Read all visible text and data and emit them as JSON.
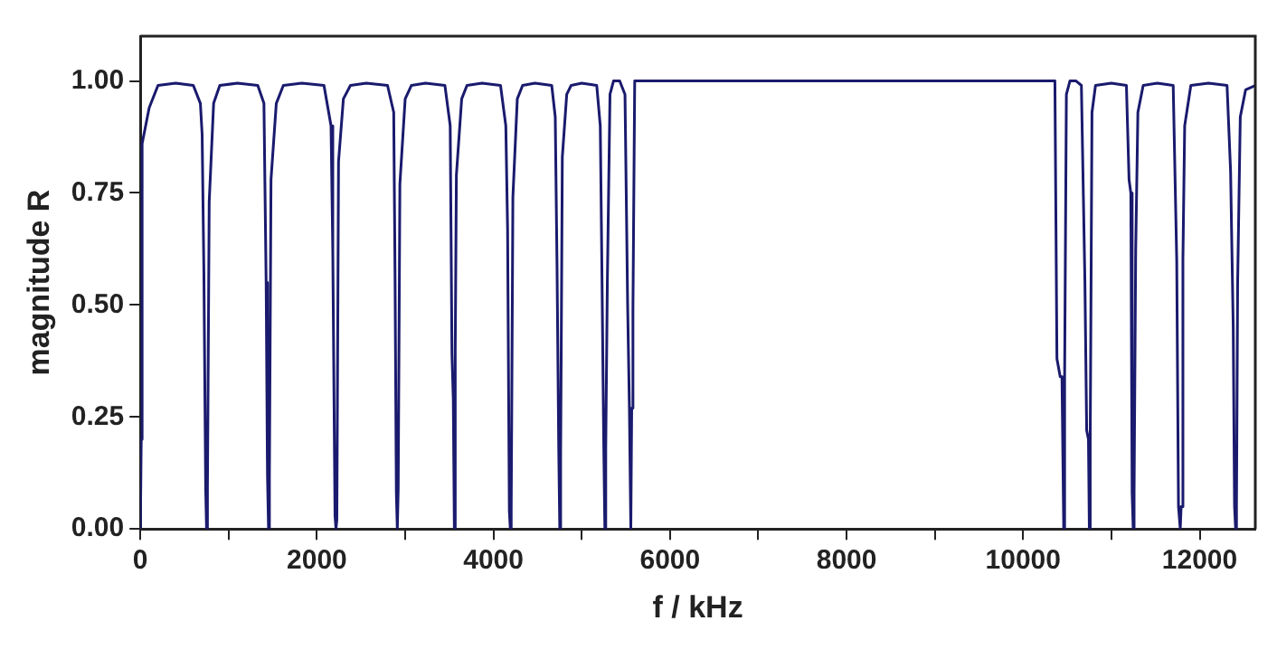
{
  "chart_data": {
    "type": "line",
    "xlabel": "f / kHz",
    "ylabel": "magnitude R",
    "xlim": [
      0,
      12630
    ],
    "ylim": [
      0,
      1.1
    ],
    "xticks": [
      0,
      {
        "value": 1000,
        "label": null
      },
      2000,
      {
        "value": 3000,
        "label": null
      },
      4000,
      {
        "value": 5000,
        "label": null
      },
      6000,
      {
        "value": 7000,
        "label": null
      },
      8000,
      {
        "value": 9000,
        "label": null
      },
      10000,
      {
        "value": 11000,
        "label": null
      },
      12000
    ],
    "yticks": [
      {
        "value": 0,
        "label": "0.00"
      },
      {
        "value": 0.25,
        "label": "0.25"
      },
      {
        "value": 0.5,
        "label": "0.50"
      },
      {
        "value": 0.75,
        "label": "0.75"
      },
      {
        "value": 1,
        "label": "1.00"
      }
    ],
    "grid": false,
    "legend": false,
    "marker": "none",
    "line_style": "solid",
    "series": [
      {
        "color": "#1a1a6e",
        "x": [
          0,
          10,
          20,
          100,
          200,
          400,
          600,
          680,
          700,
          720,
          740,
          750,
          760,
          780,
          830,
          900,
          1100,
          1330,
          1400,
          1425,
          1440,
          1452,
          1462,
          1480,
          1540,
          1620,
          1830,
          2080,
          2160,
          2180,
          2205,
          2216,
          2226,
          2245,
          2300,
          2380,
          2560,
          2800,
          2870,
          2885,
          2900,
          2911,
          2921,
          2940,
          3000,
          3070,
          3230,
          3450,
          3510,
          3530,
          3545,
          3557,
          3567,
          3580,
          3640,
          3700,
          3870,
          4080,
          4140,
          4160,
          4180,
          4191,
          4201,
          4220,
          4270,
          4330,
          4470,
          4660,
          4700,
          4720,
          4740,
          4751,
          4761,
          4780,
          4830,
          4880,
          5000,
          5170,
          5210,
          5230,
          5250,
          5262,
          5272,
          5290,
          5320,
          5360,
          5430,
          5490,
          5520,
          5540,
          5556,
          5566,
          5580,
          5600,
          10360,
          10383,
          10420,
          10440,
          10460,
          10470,
          10490,
          10530,
          10600,
          10660,
          10700,
          10720,
          10740,
          10750,
          10760,
          10780,
          10820,
          11000,
          11170,
          11200,
          11220,
          11235,
          11247,
          11257,
          11275,
          11300,
          11360,
          11520,
          11700,
          11740,
          11760,
          11780,
          11790,
          11810,
          11830,
          11900,
          12100,
          12310,
          12350,
          12380,
          12395,
          12407,
          12417,
          12430,
          12460,
          12520,
          12630
        ],
        "values": [
          0,
          0.2,
          0.86,
          0.94,
          0.99,
          0.995,
          0.99,
          0.95,
          0.88,
          0.57,
          0.09,
          0,
          0.09,
          0.73,
          0.95,
          0.99,
          0.995,
          0.99,
          0.95,
          0.55,
          0.12,
          0,
          0.12,
          0.78,
          0.95,
          0.99,
          0.995,
          0.99,
          0.9,
          0.62,
          0.03,
          0,
          0.02,
          0.82,
          0.96,
          0.99,
          0.995,
          0.99,
          0.93,
          0.57,
          0.08,
          0,
          0.09,
          0.77,
          0.96,
          0.99,
          0.995,
          0.99,
          0.9,
          0.39,
          0.29,
          0,
          0.4,
          0.79,
          0.96,
          0.99,
          0.995,
          0.99,
          0.9,
          0.67,
          0.04,
          0,
          0.04,
          0.74,
          0.96,
          0.99,
          0.995,
          0.99,
          0.92,
          0.59,
          0.17,
          0,
          0.17,
          0.83,
          0.97,
          0.99,
          0.995,
          0.99,
          0.9,
          0.55,
          0.18,
          0,
          0.18,
          0.55,
          0.97,
          1.0,
          1.0,
          0.97,
          0.5,
          0.27,
          0,
          0.27,
          0.49,
          1.0,
          1.0,
          0.38,
          0.34,
          0.34,
          0,
          0.34,
          0.97,
          1.0,
          1.0,
          0.99,
          0.55,
          0.22,
          0.2,
          0,
          0.2,
          0.93,
          0.99,
          0.995,
          0.99,
          0.78,
          0.75,
          0.08,
          0,
          0.08,
          0.62,
          0.93,
          0.99,
          0.995,
          0.99,
          0.6,
          0.05,
          0,
          0.05,
          0.6,
          0.9,
          0.99,
          0.995,
          0.99,
          0.8,
          0.45,
          0.05,
          0,
          0.05,
          0.55,
          0.92,
          0.98,
          0.99
        ]
      }
    ]
  }
}
